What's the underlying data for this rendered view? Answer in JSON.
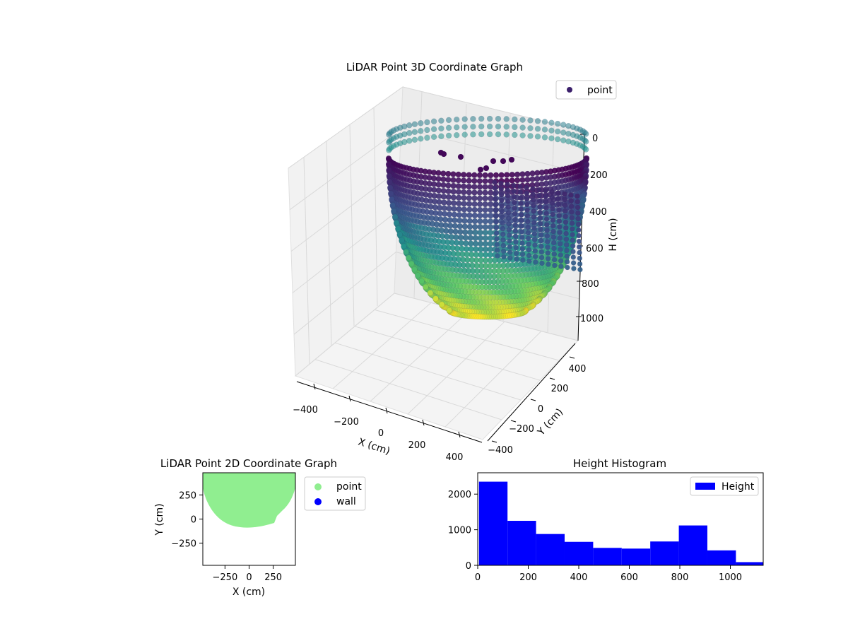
{
  "chart_data": [
    {
      "type": "scatter",
      "title": "LiDAR Point 3D Coordinate Graph",
      "xlabel": "X (cm)",
      "ylabel": "Y (cm)",
      "zlabel": "H (cm)",
      "x_ticks": [
        "−400",
        "−200",
        "0",
        "200",
        "400"
      ],
      "y_ticks": [
        "−400",
        "−200",
        "0",
        "200",
        "400"
      ],
      "z_ticks": [
        "0",
        "200",
        "400",
        "600",
        "800",
        "1000"
      ],
      "xlim": [
        -480,
        480
      ],
      "ylim": [
        -480,
        480
      ],
      "zlim": [
        1100,
        0
      ],
      "z_inverted": true,
      "colormap": "viridis",
      "grid": true,
      "legend": {
        "position": "top-right",
        "entries": [
          {
            "label": "point",
            "color": "#3b1f6b"
          }
        ]
      },
      "shape": {
        "radius": 420,
        "rim_height": 0,
        "bottom_height": 1000
      }
    },
    {
      "type": "scatter",
      "title": "LiDAR Point 2D Coordinate Graph",
      "xlabel": "X (cm)",
      "ylabel": "Y (cm)",
      "x_ticks": [
        "−250",
        "0",
        "250"
      ],
      "y_ticks": [
        "250",
        "0",
        "−250"
      ],
      "xlim": [
        -480,
        480
      ],
      "ylim": [
        -480,
        480
      ],
      "grid": false,
      "series": [
        {
          "name": "point",
          "color": "#90ee90"
        },
        {
          "name": "wall",
          "color": "#0000ff"
        }
      ],
      "legend": {
        "position": "outside-right"
      }
    },
    {
      "type": "bar",
      "title": "Height Histogram",
      "x_ticks": [
        "0",
        "200",
        "400",
        "600",
        "800",
        "1000"
      ],
      "y_ticks": [
        "0",
        "1000",
        "2000"
      ],
      "xlim": [
        0,
        1130
      ],
      "ylim": [
        0,
        2600
      ],
      "bin_edges": [
        5,
        118,
        231,
        344,
        457,
        570,
        683,
        796,
        909,
        1022,
        1135
      ],
      "values": [
        2350,
        1250,
        880,
        660,
        490,
        470,
        670,
        1120,
        420,
        90
      ],
      "color": "#0000ff",
      "series": [
        {
          "name": "Height"
        }
      ],
      "legend": {
        "position": "top-right"
      }
    }
  ]
}
